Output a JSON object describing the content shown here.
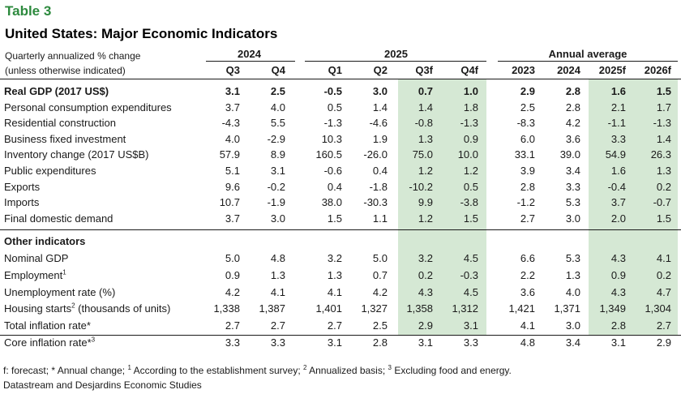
{
  "table_label": "Table 3",
  "title": "United States: Major Economic Indicators",
  "subtitle_line1": "Quarterly annualized % change",
  "subtitle_line2": "(unless otherwise indicated)",
  "groups": {
    "g2024": "2024",
    "g2025": "2025",
    "annual": "Annual average"
  },
  "columns": [
    "Q3",
    "Q4",
    "Q1",
    "Q2",
    "Q3f",
    "Q4f",
    "2023",
    "2024",
    "2025f",
    "2026f"
  ],
  "section_other": "Other indicators",
  "rows_a": [
    {
      "label": "Real GDP (2017 US$)",
      "values": [
        "3.1",
        "2.5",
        "-0.5",
        "3.0",
        "0.7",
        "1.0",
        "2.9",
        "2.8",
        "1.6",
        "1.5"
      ]
    },
    {
      "label": "Personal consumption expenditures",
      "values": [
        "3.7",
        "4.0",
        "0.5",
        "1.4",
        "1.4",
        "1.8",
        "2.5",
        "2.8",
        "2.1",
        "1.7"
      ]
    },
    {
      "label": "Residential construction",
      "values": [
        "-4.3",
        "5.5",
        "-1.3",
        "-4.6",
        "-0.8",
        "-1.3",
        "-8.3",
        "4.2",
        "-1.1",
        "-1.3"
      ]
    },
    {
      "label": "Business fixed investment",
      "values": [
        "4.0",
        "-2.9",
        "10.3",
        "1.9",
        "1.3",
        "0.9",
        "6.0",
        "3.6",
        "3.3",
        "1.4"
      ]
    },
    {
      "label": "Inventory change (2017 US$B)",
      "values": [
        "57.9",
        "8.9",
        "160.5",
        "-26.0",
        "75.0",
        "10.0",
        "33.1",
        "39.0",
        "54.9",
        "26.3"
      ]
    },
    {
      "label": "Public expenditures",
      "values": [
        "5.1",
        "3.1",
        "-0.6",
        "0.4",
        "1.2",
        "1.2",
        "3.9",
        "3.4",
        "1.6",
        "1.3"
      ]
    },
    {
      "label": "Exports",
      "values": [
        "9.6",
        "-0.2",
        "0.4",
        "-1.8",
        "-10.2",
        "0.5",
        "2.8",
        "3.3",
        "-0.4",
        "0.2"
      ]
    },
    {
      "label": "Imports",
      "values": [
        "10.7",
        "-1.9",
        "38.0",
        "-30.3",
        "9.9",
        "-3.8",
        "-1.2",
        "5.3",
        "3.7",
        "-0.7"
      ]
    },
    {
      "label": "Final domestic demand",
      "values": [
        "3.7",
        "3.0",
        "1.5",
        "1.1",
        "1.2",
        "1.5",
        "2.7",
        "3.0",
        "2.0",
        "1.5"
      ]
    }
  ],
  "rows_b": [
    {
      "label": "Nominal GDP",
      "sup": "",
      "suffix": "",
      "values": [
        "5.0",
        "4.8",
        "3.2",
        "5.0",
        "3.2",
        "4.5",
        "6.6",
        "5.3",
        "4.3",
        "4.1"
      ]
    },
    {
      "label": "Employment",
      "sup": "1",
      "suffix": "",
      "values": [
        "0.9",
        "1.3",
        "1.3",
        "0.7",
        "0.2",
        "-0.3",
        "2.2",
        "1.3",
        "0.9",
        "0.2"
      ]
    },
    {
      "label": "Unemployment rate (%)",
      "sup": "",
      "suffix": "",
      "values": [
        "4.2",
        "4.1",
        "4.1",
        "4.2",
        "4.3",
        "4.5",
        "3.6",
        "4.0",
        "4.3",
        "4.7"
      ]
    },
    {
      "label": "Housing starts",
      "sup": "2",
      "suffix": " (thousands of units)",
      "values": [
        "1,338",
        "1,387",
        "1,401",
        "1,327",
        "1,358",
        "1,312",
        "1,421",
        "1,371",
        "1,349",
        "1,304"
      ]
    },
    {
      "label": "Total inflation rate*",
      "sup": "",
      "suffix": "",
      "values": [
        "2.7",
        "2.7",
        "2.7",
        "2.5",
        "2.9",
        "3.1",
        "4.1",
        "3.0",
        "2.8",
        "2.7"
      ]
    },
    {
      "label": "Core inflation rate*",
      "sup": "3",
      "suffix": "",
      "values": [
        "3.3",
        "3.3",
        "3.1",
        "2.8",
        "3.1",
        "3.3",
        "4.8",
        "3.4",
        "3.1",
        "2.9"
      ]
    }
  ],
  "footnote_parts": [
    "f: forecast; * Annual change; ",
    "1",
    " According to the establishment survey; ",
    "2",
    " Annualized basis; ",
    "3",
    " Excluding food and energy."
  ],
  "source": "Datastream and Desjardins Economic Studies",
  "colors": {
    "accent_green": "#2d8a3e",
    "forecast_shade": "#d5e8d4"
  }
}
